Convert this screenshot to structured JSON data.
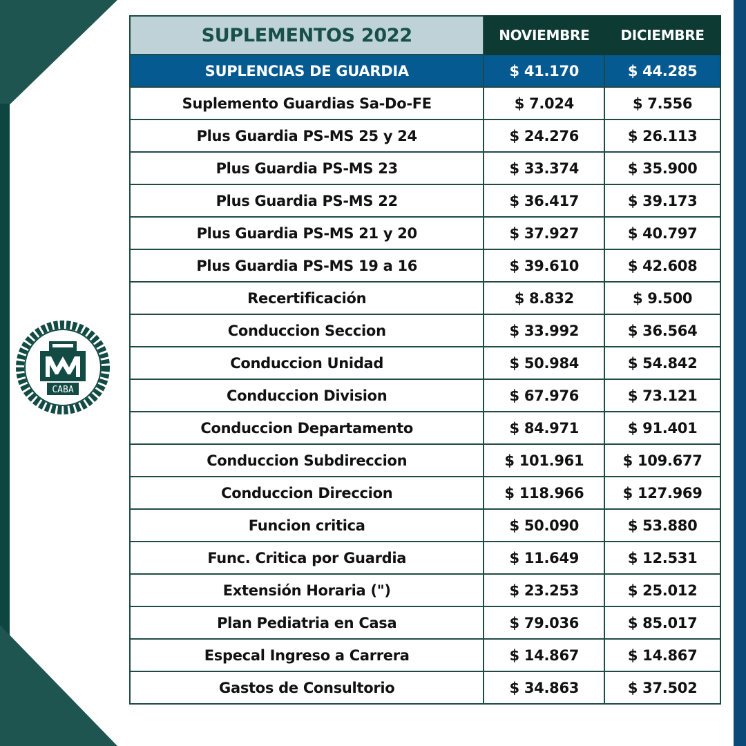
{
  "colors": {
    "header_light": "#bed2d8",
    "header_dark": "#0e3a34",
    "highlight": "#055a92",
    "accent_green": "#1f5550",
    "accent_blue": "#0b4a78"
  },
  "logo": {
    "text": "MM CABA",
    "icon": "laurel-emblem-icon"
  },
  "table": {
    "title": "SUPLEMENTOS 2022",
    "columns": [
      "NOVIEMBRE",
      "DICIEMBRE"
    ],
    "highlight_row": {
      "label": "SUPLENCIAS DE GUARDIA",
      "nov": "$ 41.170",
      "dic": "$ 44.285"
    },
    "rows": [
      {
        "label": "Suplemento Guardias Sa-Do-FE",
        "nov": "$ 7.024",
        "dic": "$ 7.556"
      },
      {
        "label": "Plus Guardia PS-MS 25 y 24",
        "nov": "$ 24.276",
        "dic": "$ 26.113"
      },
      {
        "label": "Plus Guardia PS-MS 23",
        "nov": "$ 33.374",
        "dic": "$ 35.900"
      },
      {
        "label": "Plus Guardia PS-MS 22",
        "nov": "$ 36.417",
        "dic": "$ 39.173"
      },
      {
        "label": "Plus Guardia PS-MS 21 y 20",
        "nov": "$ 37.927",
        "dic": "$ 40.797"
      },
      {
        "label": "Plus Guardia PS-MS 19 a 16",
        "nov": "$ 39.610",
        "dic": "$ 42.608"
      },
      {
        "label": "Recertificación",
        "nov": "$ 8.832",
        "dic": "$ 9.500"
      },
      {
        "label": "Conduccion Seccion",
        "nov": "$ 33.992",
        "dic": "$ 36.564"
      },
      {
        "label": "Conduccion Unidad",
        "nov": "$ 50.984",
        "dic": "$ 54.842"
      },
      {
        "label": "Conduccion Division",
        "nov": "$ 67.976",
        "dic": "$ 73.121"
      },
      {
        "label": "Conduccion Departamento",
        "nov": "$ 84.971",
        "dic": "$ 91.401"
      },
      {
        "label": "Conduccion Subdireccion",
        "nov": "$ 101.961",
        "dic": "$ 109.677"
      },
      {
        "label": "Conduccion Direccion",
        "nov": "$ 118.966",
        "dic": "$ 127.969"
      },
      {
        "label": "Funcion critica",
        "nov": "$ 50.090",
        "dic": "$ 53.880"
      },
      {
        "label": "Func. Critica por Guardia",
        "nov": "$ 11.649",
        "dic": "$ 12.531"
      },
      {
        "label": "Extensión Horaria (\")",
        "nov": "$ 23.253",
        "dic": "$ 25.012"
      },
      {
        "label": "Plan Pediatria en Casa",
        "nov": "$ 79.036",
        "dic": "$ 85.017"
      },
      {
        "label": "Especal Ingreso a Carrera",
        "nov": "$ 14.867",
        "dic": "$ 14.867"
      },
      {
        "label": "Gastos de Consultorio",
        "nov": "$ 34.863",
        "dic": "$ 37.502"
      }
    ]
  }
}
